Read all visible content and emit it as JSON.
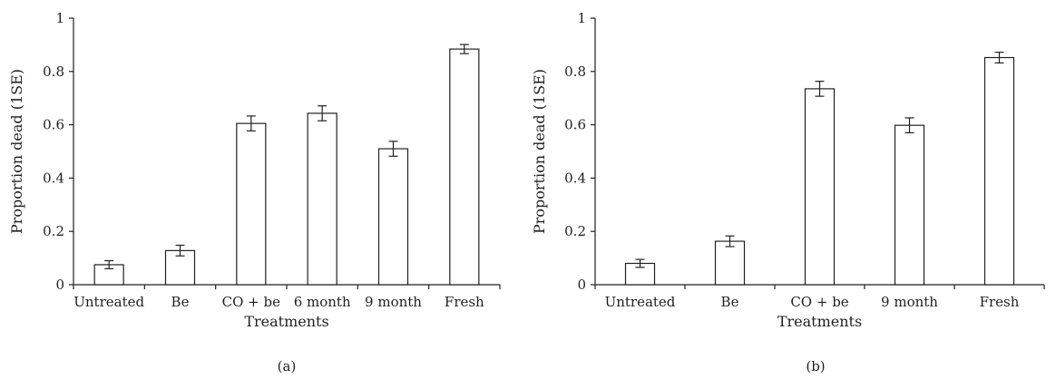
{
  "chart_data": [
    {
      "type": "bar",
      "panel_label": "(a)",
      "xlabel": "Treatments",
      "ylabel": "Proportion dead (1SE)",
      "ylim": [
        0,
        1
      ],
      "yticks": [
        0,
        0.2,
        0.4,
        0.6,
        0.8,
        1
      ],
      "ytick_labels": [
        "0",
        "0.2",
        "0.4",
        "0.6",
        "0.8",
        "1"
      ],
      "categories": [
        "Untreated",
        "Be",
        "CO + be",
        "6 month",
        "9 month",
        "Fresh"
      ],
      "values": [
        0.075,
        0.128,
        0.605,
        0.643,
        0.51,
        0.884
      ],
      "errors": [
        0.015,
        0.02,
        0.028,
        0.028,
        0.028,
        0.017
      ],
      "grid": false,
      "legend": "none"
    },
    {
      "type": "bar",
      "panel_label": "(b)",
      "xlabel": "Treatments",
      "ylabel": "Proportion dead (1SE)",
      "ylim": [
        0,
        1
      ],
      "yticks": [
        0,
        0.2,
        0.4,
        0.6,
        0.8,
        1
      ],
      "ytick_labels": [
        "0",
        "0.2",
        "0.4",
        "0.6",
        "0.8",
        "1"
      ],
      "categories": [
        "Untreated",
        "Be",
        "CO + be",
        "9 month",
        "Fresh"
      ],
      "values": [
        0.08,
        0.163,
        0.735,
        0.598,
        0.852
      ],
      "errors": [
        0.015,
        0.02,
        0.028,
        0.028,
        0.02
      ],
      "grid": false,
      "legend": "none"
    }
  ]
}
